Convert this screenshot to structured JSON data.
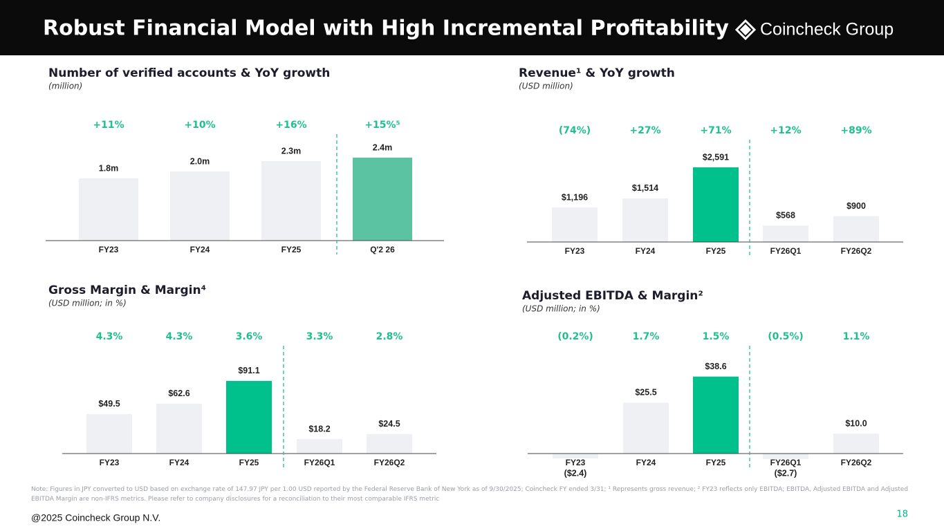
{
  "header": {
    "title": "Robust Financial Model with High Incremental Profitability",
    "logo": "Coincheck Group"
  },
  "chart_data": [
    {
      "type": "bar",
      "title": "Number of verified accounts & YoY growth",
      "subtitle": "(million)",
      "categories": [
        "FY23",
        "FY24",
        "FY25",
        "Q'2 26"
      ],
      "values": [
        1.8,
        2.0,
        2.3,
        2.4
      ],
      "value_labels": [
        "1.8m",
        "2.0m",
        "2.3m",
        "2.4m"
      ],
      "growth_labels": [
        "+11%",
        "+10%",
        "+16%",
        "+15%⁵"
      ],
      "colors": [
        "#eef0f3",
        "#eef0f3",
        "#eef0f3",
        "#5bc2a2"
      ],
      "divider_after": 2,
      "ylim": [
        0,
        3
      ]
    },
    {
      "type": "bar",
      "title": "Revenue¹ & YoY growth",
      "subtitle": "(USD million)",
      "categories": [
        "FY23",
        "FY24",
        "FY25",
        "FY26Q1",
        "FY26Q2"
      ],
      "values": [
        1196,
        1514,
        2591,
        568,
        900
      ],
      "value_labels": [
        "$1,196",
        "$1,514",
        "$2,591",
        "$568",
        "$900"
      ],
      "growth_labels": [
        "(74%)",
        "+27%",
        "+71%",
        "+12%",
        "+89%"
      ],
      "colors": [
        "#eef0f3",
        "#eef0f3",
        "#00c08b",
        "#eef0f3",
        "#eef0f3"
      ],
      "divider_after": 2,
      "ylim": [
        0,
        3600
      ]
    },
    {
      "type": "bar",
      "title": "Gross Margin & Margin⁴",
      "subtitle": "(USD million; in %)",
      "categories": [
        "FY23",
        "FY24",
        "FY25",
        "FY26Q1",
        "FY26Q2"
      ],
      "values": [
        49.5,
        62.6,
        91.1,
        18.2,
        24.5
      ],
      "value_labels": [
        "$49.5",
        "$62.6",
        "$91.1",
        "$18.2",
        "$24.5"
      ],
      "growth_labels": [
        "4.3%",
        "4.3%",
        "3.6%",
        "3.3%",
        "2.8%"
      ],
      "colors": [
        "#eef0f3",
        "#eef0f3",
        "#00c08b",
        "#eef0f3",
        "#eef0f3"
      ],
      "divider_after": 2,
      "ylim": [
        0,
        130
      ]
    },
    {
      "type": "bar",
      "title": "Adjusted EBITDA & Margin²",
      "subtitle": "(USD million; in %)",
      "categories": [
        "FY23",
        "FY24",
        "FY25",
        "FY26Q1",
        "FY26Q2"
      ],
      "values": [
        -2.4,
        25.5,
        38.6,
        -2.7,
        10.0
      ],
      "value_labels": [
        "($2.4)",
        "$25.5",
        "$38.6",
        "($2.7)",
        "$10.0"
      ],
      "growth_labels": [
        "(0.2%)",
        "1.7%",
        "1.5%",
        "(0.5%)",
        "1.1%"
      ],
      "colors": [
        "#eef0f3",
        "#eef0f3",
        "#00c08b",
        "#eef0f3",
        "#eef0f3"
      ],
      "divider_after": 2,
      "ylim": [
        0,
        52
      ]
    }
  ],
  "footer": {
    "note": "Note: Figures in JPY converted to USD based on exchange rate of 147.97 JPY per 1.00 USD reported by the Federal Reserve Bank of New York as of 9/30/2025; Coincheck FY ended 3/31; ¹ Represents gross revenue; ² FY23 reflects only EBITDA; EBITDA, Adjusted EBITDA and Adjusted EBITDA Margin are non-IFRS metrics. Please refer to company disclosures for a reconciliation to their most comparable IFRS metric",
    "copyright": "@2025 Coincheck Group N.V.",
    "page": "18"
  }
}
